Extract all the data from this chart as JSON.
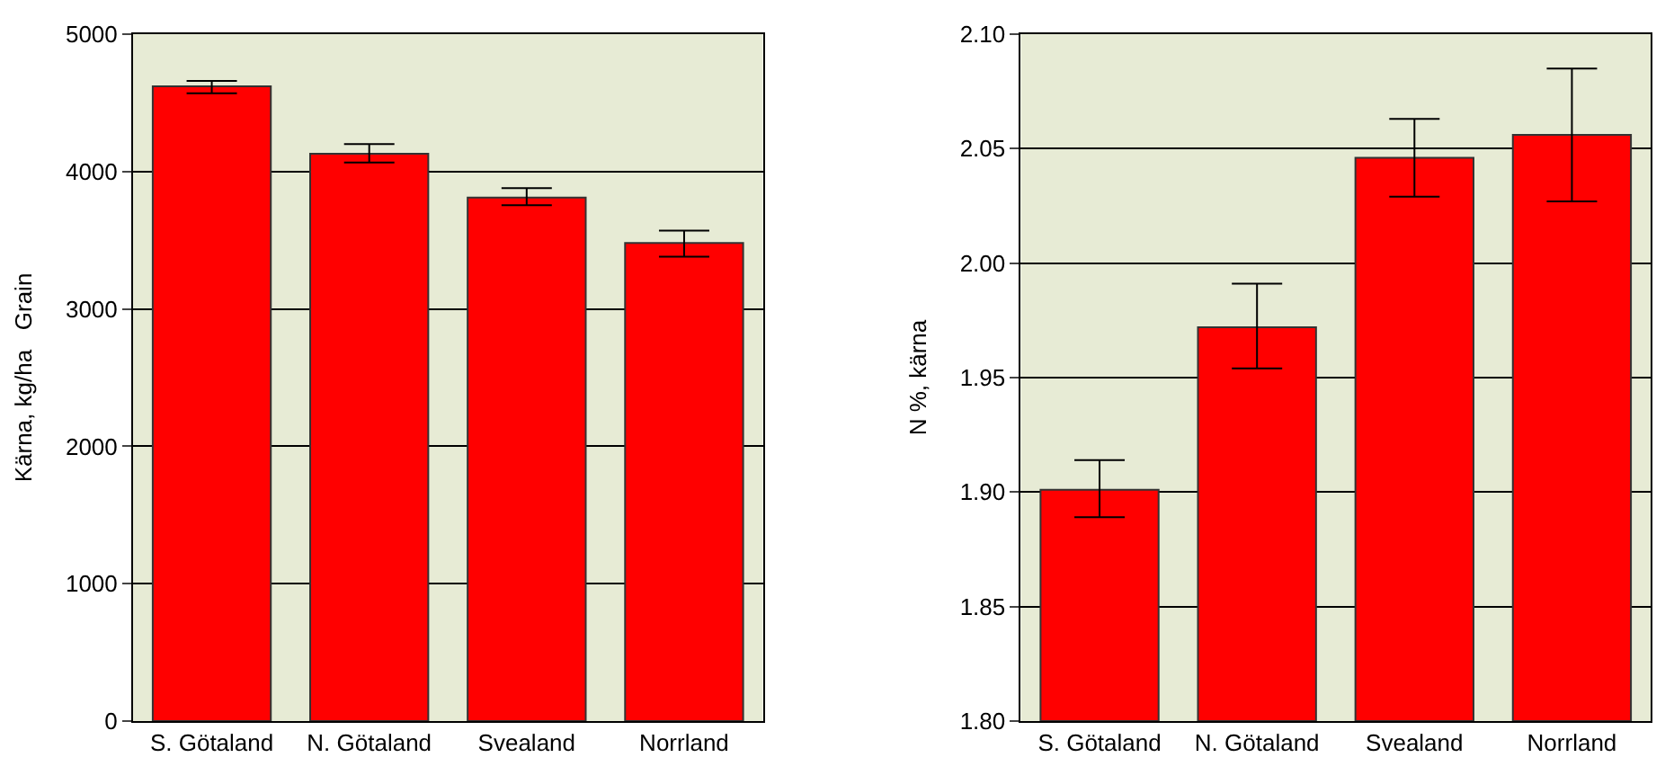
{
  "chart_data": [
    {
      "type": "bar",
      "ylabel": "Kärna, kg/ha   $^{}$Grain",
      "categories": [
        "S. Götaland",
        "N. Götaland",
        "Svealand",
        "Norrland"
      ],
      "values": [
        4620,
        4130,
        3810,
        3480
      ],
      "color": "#ff0000",
      "errors": [
        [
          4570,
          4660
        ],
        [
          4065,
          4200
        ],
        [
          3755,
          3880
        ],
        [
          3380,
          3570
        ]
      ],
      "ylim": [
        0,
        5000
      ],
      "yticks": [
        0,
        1000,
        2000,
        3000,
        4000,
        5000
      ],
      "grid": "y"
    },
    {
      "type": "bar",
      "ylabel": "N %, kärna",
      "categories": [
        "S. Götaland",
        "N. Götaland",
        "Svealand",
        "Norrland"
      ],
      "values": [
        1.901,
        1.972,
        2.046,
        2.056
      ],
      "color": "#ff0000",
      "errors": [
        [
          1.889,
          1.914
        ],
        [
          1.954,
          1.991
        ],
        [
          2.029,
          2.063
        ],
        [
          2.027,
          2.085
        ]
      ],
      "ylim": [
        1.8,
        2.1
      ],
      "yticks": [
        {
          "value": 1.8,
          "label": "1.80"
        },
        {
          "value": 1.85,
          "label": "1.85"
        },
        {
          "value": 1.9,
          "label": "1.90"
        },
        {
          "value": 1.95,
          "label": "1.95"
        },
        {
          "value": 2.0,
          "label": "2.00"
        },
        {
          "value": 2.05,
          "label": "2.05"
        },
        {
          "value": 2.1,
          "label": "2.10"
        }
      ],
      "grid": "y"
    }
  ]
}
